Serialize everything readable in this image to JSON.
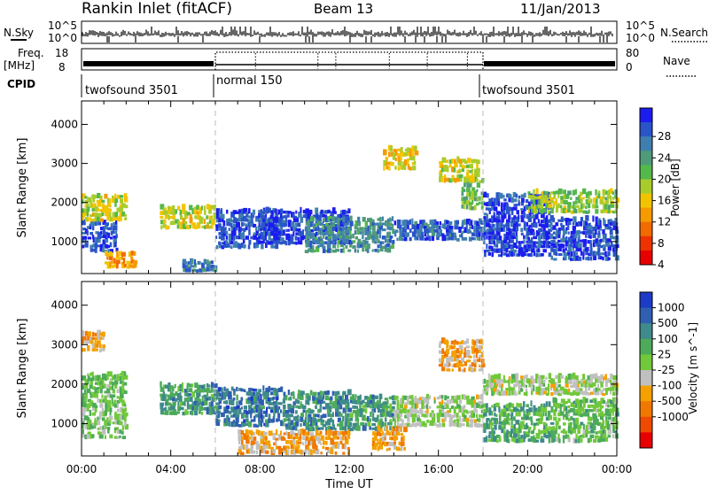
{
  "header": {
    "station": "Rankin Inlet (fitACF)",
    "beam": "Beam 13",
    "date": "11/Jan/2013"
  },
  "strips": {
    "nsky_label": "N.Sky",
    "nsky_ticks": [
      "10^5",
      "10^0"
    ],
    "nsearch_label": "N.Search",
    "nsearch_ticks": [
      "10^5",
      "10^0"
    ],
    "freq_label": "Freq.",
    "freq_unit": "[MHz]",
    "freq_ticks": [
      "18",
      "8"
    ],
    "nave_label": "Nave",
    "nave_ticks": [
      "80",
      "0"
    ],
    "cpid_label": "CPID",
    "cpid_segments": [
      {
        "name": "twofsound 3501",
        "start_hour": 0,
        "end_hour": 6
      },
      {
        "name": "normal 150",
        "start_hour": 6,
        "end_hour": 18
      },
      {
        "name": "twofsound 3501",
        "start_hour": 18,
        "end_hour": 24
      }
    ]
  },
  "power_colorbar": {
    "label": "Power [dB]",
    "ticks": [
      "28",
      "24",
      "20",
      "16",
      "12",
      "8",
      "4"
    ],
    "colors": [
      "#1c1cf0",
      "#2a55c8",
      "#3f7fb0",
      "#4f9a7a",
      "#55b84a",
      "#a8cc2c",
      "#f2c400",
      "#f59a00",
      "#f26a00",
      "#ee3300",
      "#e80000"
    ]
  },
  "velocity_colorbar": {
    "label": "Velocity [m s^-1]",
    "ticks": [
      "1000",
      "500",
      "100",
      "25",
      "-25",
      "-100",
      "-500",
      "-1000"
    ],
    "colors": [
      "#1c3cc8",
      "#2f5fb0",
      "#3f8a8a",
      "#4caa5a",
      "#70c83a",
      "#c0c0c0",
      "#f4a000",
      "#f07800",
      "#ee4a00",
      "#e80000"
    ]
  },
  "chart_data": [
    {
      "type": "heatmap",
      "panel": "power",
      "title": "",
      "xlabel": "Time UT",
      "ylabel": "Slant Range [km]",
      "xlim_hours": [
        0,
        24
      ],
      "ylim_km": [
        180,
        4600
      ],
      "x_ticks": [
        "00:00",
        "04:00",
        "08:00",
        "12:00",
        "16:00",
        "20:00",
        "00:00"
      ],
      "y_ticks": [
        1000,
        2000,
        3000,
        4000
      ],
      "value_units": "dB",
      "value_range": [
        0,
        30
      ],
      "mode_boundaries_hours": [
        6,
        18
      ],
      "regions": [
        {
          "t": [
            0.0,
            1.6
          ],
          "r": [
            700,
            1500
          ],
          "value": 26
        },
        {
          "t": [
            0.0,
            2.0
          ],
          "r": [
            1500,
            2200
          ],
          "value": 14
        },
        {
          "t": [
            1.0,
            2.4
          ],
          "r": [
            300,
            700
          ],
          "value": 10
        },
        {
          "t": [
            3.5,
            6.0
          ],
          "r": [
            1300,
            1900
          ],
          "value": 14
        },
        {
          "t": [
            4.5,
            6.0
          ],
          "r": [
            200,
            500
          ],
          "value": 24
        },
        {
          "t": [
            6.0,
            9.0
          ],
          "r": [
            800,
            1800
          ],
          "value": 26
        },
        {
          "t": [
            8.0,
            12.0
          ],
          "r": [
            900,
            1800
          ],
          "value": 27
        },
        {
          "t": [
            10.0,
            14.0
          ],
          "r": [
            700,
            1600
          ],
          "value": 22
        },
        {
          "t": [
            14.0,
            18.0
          ],
          "r": [
            1000,
            1500
          ],
          "value": 25
        },
        {
          "t": [
            17.0,
            18.0
          ],
          "r": [
            1800,
            2600
          ],
          "value": 18
        },
        {
          "t": [
            16.0,
            17.8
          ],
          "r": [
            2500,
            3100
          ],
          "value": 14
        },
        {
          "t": [
            13.5,
            15.0
          ],
          "r": [
            2800,
            3400
          ],
          "value": 12
        },
        {
          "t": [
            18.0,
            21.0
          ],
          "r": [
            600,
            2200
          ],
          "value": 27
        },
        {
          "t": [
            21.0,
            24.0
          ],
          "r": [
            500,
            1600
          ],
          "value": 26
        },
        {
          "t": [
            20.0,
            24.0
          ],
          "r": [
            1700,
            2300
          ],
          "value": 16
        }
      ]
    },
    {
      "type": "heatmap",
      "panel": "velocity",
      "title": "",
      "xlabel": "Time UT",
      "ylabel": "Slant Range [km]",
      "xlim_hours": [
        0,
        24
      ],
      "ylim_km": [
        180,
        4600
      ],
      "x_ticks": [
        "00:00",
        "04:00",
        "08:00",
        "12:00",
        "16:00",
        "20:00",
        "00:00"
      ],
      "y_ticks": [
        1000,
        2000,
        3000,
        4000
      ],
      "value_units": "m s^-1",
      "value_range": [
        -1000,
        1000
      ],
      "mode_boundaries_hours": [
        6,
        18
      ],
      "regions": [
        {
          "t": [
            0.0,
            2.0
          ],
          "r": [
            600,
            2300
          ],
          "value": 150
        },
        {
          "t": [
            0.0,
            1.0
          ],
          "r": [
            2800,
            3300
          ],
          "value": -300
        },
        {
          "t": [
            3.5,
            6.0
          ],
          "r": [
            1200,
            2000
          ],
          "value": 400
        },
        {
          "t": [
            6.0,
            9.0
          ],
          "r": [
            900,
            1900
          ],
          "value": 600
        },
        {
          "t": [
            9.0,
            12.0
          ],
          "r": [
            800,
            1800
          ],
          "value": 500
        },
        {
          "t": [
            7.0,
            12.0
          ],
          "r": [
            200,
            800
          ],
          "value": -300
        },
        {
          "t": [
            12.0,
            14.0
          ],
          "r": [
            800,
            1700
          ],
          "value": 400
        },
        {
          "t": [
            13.0,
            14.5
          ],
          "r": [
            300,
            900
          ],
          "value": -300
        },
        {
          "t": [
            14.0,
            18.0
          ],
          "r": [
            900,
            1700
          ],
          "value": 0
        },
        {
          "t": [
            16.0,
            18.0
          ],
          "r": [
            2300,
            3100
          ],
          "value": -300
        },
        {
          "t": [
            18.0,
            24.0
          ],
          "r": [
            1700,
            2200
          ],
          "value": 0
        },
        {
          "t": [
            18.0,
            21.0
          ],
          "r": [
            500,
            1500
          ],
          "value": 300
        },
        {
          "t": [
            21.0,
            24.0
          ],
          "r": [
            500,
            1600
          ],
          "value": 200
        }
      ]
    }
  ]
}
